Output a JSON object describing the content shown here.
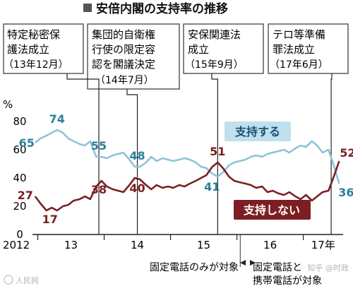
{
  "title": "安倍内閣の支持率の推移",
  "events": [
    {
      "lines": [
        "特定秘密保",
        "護法成立"
      ],
      "date": "（13年12月）"
    },
    {
      "lines": [
        "集団的自衛権",
        "行使の限定容",
        "認を閣議決定"
      ],
      "date": "（14年7月）"
    },
    {
      "lines": [
        "安保関連法",
        "成立"
      ],
      "date": "（15年9月）"
    },
    {
      "lines": [
        "テロ等準備",
        "罪法成立"
      ],
      "date": "（17年6月）"
    }
  ],
  "notes": {
    "landline_only": "固定電話のみが対象",
    "landline_mobile_1": "固定電話と",
    "landline_mobile_2": "携帯電話が対象"
  },
  "watermark": "人民网",
  "watermark_right": "知乎 @时政",
  "colors": {
    "support": "#8ec3d8",
    "nonsupport": "#7b1f22",
    "support_label_bg": "#bfe0ec",
    "nonsupport_label_bg": "#7b1f22"
  },
  "chart_data": {
    "type": "line",
    "unit": "%",
    "x_ticks": [
      "2012",
      "13",
      "14",
      "15",
      "16",
      "17年"
    ],
    "x_tick_values": [
      2012.92,
      2013.5,
      2014.5,
      2015.5,
      2016.5,
      2017.3
    ],
    "xlim": [
      2012.92,
      2017.6
    ],
    "ylim": [
      0,
      80
    ],
    "yticks": [
      0,
      20,
      40,
      60,
      80
    ],
    "grid": false,
    "event_x": [
      2013.92,
      2014.5,
      2015.71,
      2017.42
    ],
    "method_change_x": 2016.05,
    "series": [
      {
        "name": "支持する",
        "color": "#8ec3d8",
        "points": [
          [
            2012.96,
            65
          ],
          [
            2013.04,
            68
          ],
          [
            2013.13,
            70
          ],
          [
            2013.21,
            72
          ],
          [
            2013.29,
            74
          ],
          [
            2013.38,
            72
          ],
          [
            2013.46,
            68
          ],
          [
            2013.54,
            66
          ],
          [
            2013.63,
            64
          ],
          [
            2013.71,
            63
          ],
          [
            2013.79,
            66
          ],
          [
            2013.88,
            55
          ],
          [
            2013.96,
            55
          ],
          [
            2014.04,
            54
          ],
          [
            2014.13,
            56
          ],
          [
            2014.21,
            57
          ],
          [
            2014.29,
            58
          ],
          [
            2014.38,
            53
          ],
          [
            2014.46,
            48
          ],
          [
            2014.54,
            48
          ],
          [
            2014.63,
            51
          ],
          [
            2014.71,
            55
          ],
          [
            2014.79,
            52
          ],
          [
            2014.88,
            54
          ],
          [
            2014.96,
            53
          ],
          [
            2015.04,
            52
          ],
          [
            2015.13,
            53
          ],
          [
            2015.21,
            54
          ],
          [
            2015.29,
            53
          ],
          [
            2015.38,
            51
          ],
          [
            2015.46,
            48
          ],
          [
            2015.54,
            47
          ],
          [
            2015.63,
            43
          ],
          [
            2015.71,
            41
          ],
          [
            2015.79,
            44
          ],
          [
            2015.88,
            49
          ],
          [
            2015.96,
            51
          ],
          [
            2016.04,
            52
          ],
          [
            2016.13,
            53
          ],
          [
            2016.21,
            55
          ],
          [
            2016.29,
            56
          ],
          [
            2016.38,
            55
          ],
          [
            2016.46,
            57
          ],
          [
            2016.54,
            58
          ],
          [
            2016.63,
            59
          ],
          [
            2016.71,
            60
          ],
          [
            2016.79,
            58
          ],
          [
            2016.88,
            61
          ],
          [
            2016.96,
            63
          ],
          [
            2017.04,
            62
          ],
          [
            2017.13,
            66
          ],
          [
            2017.21,
            63
          ],
          [
            2017.29,
            58
          ],
          [
            2017.38,
            60
          ],
          [
            2017.46,
            49
          ],
          [
            2017.54,
            36
          ]
        ]
      },
      {
        "name": "支持しない",
        "color": "#7b1f22",
        "points": [
          [
            2012.96,
            27
          ],
          [
            2013.04,
            22
          ],
          [
            2013.13,
            17
          ],
          [
            2013.21,
            19
          ],
          [
            2013.29,
            17
          ],
          [
            2013.38,
            20
          ],
          [
            2013.46,
            21
          ],
          [
            2013.54,
            24
          ],
          [
            2013.63,
            25
          ],
          [
            2013.71,
            27
          ],
          [
            2013.79,
            25
          ],
          [
            2013.88,
            34
          ],
          [
            2013.96,
            38
          ],
          [
            2014.04,
            34
          ],
          [
            2014.13,
            32
          ],
          [
            2014.21,
            31
          ],
          [
            2014.29,
            30
          ],
          [
            2014.38,
            35
          ],
          [
            2014.46,
            40
          ],
          [
            2014.54,
            39
          ],
          [
            2014.63,
            35
          ],
          [
            2014.71,
            32
          ],
          [
            2014.79,
            35
          ],
          [
            2014.88,
            33
          ],
          [
            2014.96,
            34
          ],
          [
            2015.04,
            33
          ],
          [
            2015.13,
            35
          ],
          [
            2015.21,
            34
          ],
          [
            2015.29,
            36
          ],
          [
            2015.38,
            38
          ],
          [
            2015.46,
            40
          ],
          [
            2015.54,
            42
          ],
          [
            2015.63,
            48
          ],
          [
            2015.71,
            51
          ],
          [
            2015.79,
            47
          ],
          [
            2015.88,
            41
          ],
          [
            2015.96,
            38
          ],
          [
            2016.04,
            37
          ],
          [
            2016.13,
            36
          ],
          [
            2016.21,
            35
          ],
          [
            2016.29,
            33
          ],
          [
            2016.38,
            34
          ],
          [
            2016.46,
            30
          ],
          [
            2016.54,
            31
          ],
          [
            2016.63,
            29
          ],
          [
            2016.71,
            28
          ],
          [
            2016.79,
            30
          ],
          [
            2016.88,
            27
          ],
          [
            2016.96,
            25
          ],
          [
            2017.04,
            28
          ],
          [
            2017.13,
            24
          ],
          [
            2017.21,
            27
          ],
          [
            2017.29,
            30
          ],
          [
            2017.38,
            31
          ],
          [
            2017.46,
            41
          ],
          [
            2017.54,
            52
          ]
        ]
      }
    ],
    "data_labels": [
      {
        "series": 0,
        "x": 2012.96,
        "value": 65
      },
      {
        "series": 0,
        "x": 2013.29,
        "value": 74
      },
      {
        "series": 0,
        "x": 2013.92,
        "value": 55
      },
      {
        "series": 0,
        "x": 2014.5,
        "value": 48
      },
      {
        "series": 0,
        "x": 2015.71,
        "value": 41
      },
      {
        "series": 0,
        "x": 2017.54,
        "value": 36
      },
      {
        "series": 1,
        "x": 2012.96,
        "value": 27
      },
      {
        "series": 1,
        "x": 2013.29,
        "value": 17
      },
      {
        "series": 1,
        "x": 2013.92,
        "value": 38
      },
      {
        "series": 1,
        "x": 2014.5,
        "value": 40
      },
      {
        "series": 1,
        "x": 2015.71,
        "value": 51
      },
      {
        "series": 1,
        "x": 2017.54,
        "value": 52
      }
    ],
    "legend": [
      {
        "label": "支持する",
        "series": 0
      },
      {
        "label": "支持しない",
        "series": 1
      }
    ]
  }
}
